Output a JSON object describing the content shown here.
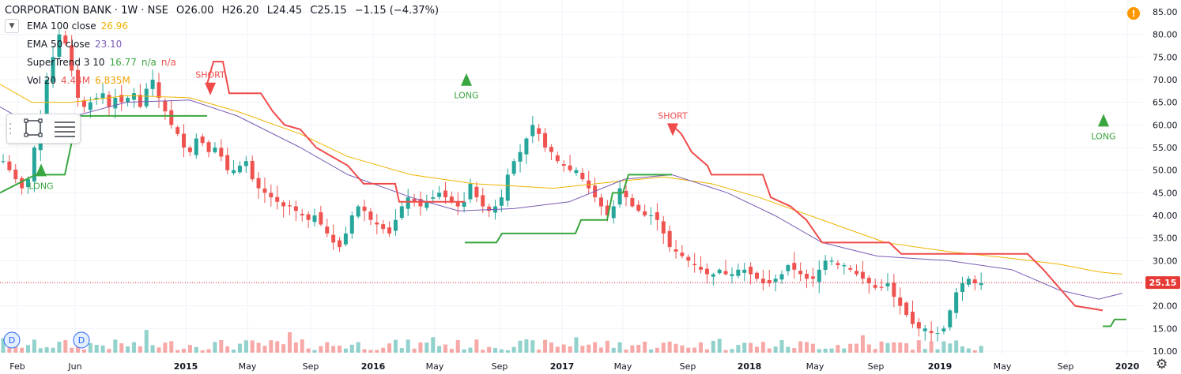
{
  "header": {
    "symbol": "CORPORATION BANK · 1W · NSE",
    "open": "O26.00",
    "high": "H26.20",
    "low": "L24.45",
    "close": "C25.15",
    "change": "−1.15 (−4.37%)"
  },
  "indicators": [
    {
      "name": "EMA 100 close",
      "value": "26.96",
      "color": "#f0b400"
    },
    {
      "name": "EMA 50 close",
      "value": "23.10",
      "color": "#7a5bb5"
    },
    {
      "name": "SuperTrend 3 10",
      "value": "16.77",
      "value2": "n/a",
      "value3": "n/a",
      "color": "#3aa63f"
    },
    {
      "name": "Vol 20",
      "value": "4.44M",
      "value2": "6.835M",
      "color": "#ef5350"
    }
  ],
  "colors": {
    "up": "#26a69a",
    "down": "#ef5350",
    "st_up": "#3aa63f",
    "st_down": "#f04b4b",
    "ema100": "#f0b400",
    "ema50": "#7a5bb5",
    "pricebadge": "#e53935"
  },
  "chart_data": {
    "type": "candlestick",
    "x_ticks": [
      "Feb",
      "Jun",
      "2015",
      "May",
      "Sep",
      "2016",
      "May",
      "Sep",
      "2017",
      "May",
      "Sep",
      "2018",
      "May",
      "Sep",
      "2019",
      "May",
      "Sep",
      "2020"
    ],
    "y_ticks": [
      "85.00",
      "80.00",
      "75.00",
      "70.00",
      "65.00",
      "60.00",
      "55.00",
      "50.00",
      "45.00",
      "40.00",
      "35.00",
      "30.00",
      "25.00",
      "20.00",
      "15.00",
      "10.00"
    ],
    "ylim": [
      10,
      86
    ],
    "last_price": "25.15",
    "close_path": [
      52,
      50,
      48,
      46,
      48,
      55,
      62,
      70,
      75,
      80,
      78,
      72,
      66,
      64,
      65,
      66,
      67,
      64,
      66,
      65,
      66,
      67,
      64,
      68,
      70,
      66,
      63,
      60,
      58,
      55,
      54,
      57,
      56,
      54,
      55,
      53,
      50,
      50,
      51,
      52,
      48,
      46,
      45,
      44,
      43,
      42,
      42,
      41,
      40,
      39,
      40,
      38,
      36,
      34,
      33,
      36,
      40,
      42,
      41,
      39,
      38,
      37,
      36,
      39,
      42,
      44,
      43,
      42,
      43,
      44,
      45,
      44,
      43,
      42,
      43,
      47,
      44,
      42,
      41,
      42,
      44,
      49,
      52,
      54,
      57,
      60,
      58,
      55,
      54,
      52,
      51,
      50,
      50,
      48,
      46,
      44,
      42,
      40,
      42,
      46,
      44,
      42,
      41,
      40,
      40,
      39,
      36,
      33,
      32,
      31,
      30,
      29,
      28,
      27,
      27,
      28,
      27,
      27,
      28,
      28,
      27,
      26,
      25,
      25,
      26,
      27,
      29,
      28,
      27,
      26,
      26,
      28,
      30,
      30,
      29,
      29,
      28,
      27,
      26,
      25,
      24,
      24,
      25,
      22,
      20,
      18,
      16,
      15,
      15,
      14,
      14,
      15,
      19,
      23,
      25,
      26,
      25,
      25
    ],
    "ema100_path": [
      [
        0,
        69
      ],
      [
        40,
        65
      ],
      [
        90,
        65
      ],
      [
        160,
        66.5
      ],
      [
        240,
        66
      ],
      [
        300,
        63
      ],
      [
        380,
        58
      ],
      [
        440,
        53
      ],
      [
        520,
        49
      ],
      [
        600,
        47
      ],
      [
        700,
        46
      ],
      [
        780,
        47.5
      ],
      [
        840,
        48.5
      ],
      [
        900,
        47
      ],
      [
        960,
        44
      ],
      [
        1040,
        39
      ],
      [
        1120,
        34
      ],
      [
        1200,
        32
      ],
      [
        1280,
        30.5
      ],
      [
        1340,
        29.2
      ],
      [
        1390,
        27.5
      ],
      [
        1420,
        27
      ]
    ],
    "ema50_path": [
      [
        0,
        64
      ],
      [
        40,
        60
      ],
      [
        95,
        62
      ],
      [
        160,
        65
      ],
      [
        240,
        65.5
      ],
      [
        300,
        62
      ],
      [
        380,
        55
      ],
      [
        440,
        49
      ],
      [
        520,
        44
      ],
      [
        580,
        41
      ],
      [
        650,
        41.5
      ],
      [
        720,
        43
      ],
      [
        790,
        48
      ],
      [
        850,
        49
      ],
      [
        920,
        45
      ],
      [
        980,
        40
      ],
      [
        1040,
        34
      ],
      [
        1110,
        31
      ],
      [
        1200,
        30
      ],
      [
        1280,
        28
      ],
      [
        1340,
        23.5
      ],
      [
        1390,
        21.5
      ],
      [
        1420,
        22.8
      ]
    ],
    "supertrend_segments": [
      {
        "trend": "up",
        "points": [
          [
            0,
            45
          ],
          [
            45,
            49
          ],
          [
            82,
            49
          ],
          [
            93,
            58
          ],
          [
            100,
            62
          ],
          [
            262,
            62
          ]
        ]
      },
      {
        "trend": "down",
        "points": [
          [
            262,
            69
          ],
          [
            270,
            74
          ],
          [
            282,
            74
          ],
          [
            290,
            67
          ],
          [
            330,
            67
          ],
          [
            345,
            63
          ],
          [
            360,
            60
          ],
          [
            380,
            59
          ],
          [
            400,
            55
          ],
          [
            420,
            53
          ],
          [
            440,
            51
          ],
          [
            460,
            47
          ],
          [
            500,
            47
          ],
          [
            505,
            43
          ],
          [
            588,
            43
          ]
        ]
      },
      {
        "trend": "up",
        "points": [
          [
            588,
            34
          ],
          [
            628,
            34
          ],
          [
            635,
            36
          ],
          [
            728,
            36
          ],
          [
            735,
            39
          ],
          [
            768,
            39
          ],
          [
            775,
            45
          ],
          [
            788,
            45
          ],
          [
            795,
            49
          ],
          [
            850,
            49
          ]
        ]
      },
      {
        "trend": "down",
        "points": [
          [
            850,
            60
          ],
          [
            862,
            58
          ],
          [
            875,
            54
          ],
          [
            895,
            51
          ],
          [
            900,
            49
          ],
          [
            965,
            49
          ],
          [
            975,
            44
          ],
          [
            1000,
            42
          ],
          [
            1020,
            39
          ],
          [
            1040,
            34
          ],
          [
            1125,
            34
          ],
          [
            1140,
            31.5
          ],
          [
            1300,
            31.5
          ],
          [
            1320,
            28
          ],
          [
            1340,
            24
          ],
          [
            1360,
            20
          ],
          [
            1395,
            19
          ]
        ]
      },
      {
        "trend": "up",
        "points": [
          [
            1395,
            15.5
          ],
          [
            1405,
            15.5
          ],
          [
            1410,
            17
          ],
          [
            1425,
            17
          ]
        ]
      }
    ],
    "signals": [
      {
        "type": "LONG",
        "label": "LONG",
        "x": 52
      },
      {
        "type": "SHORT",
        "label": "SHORT",
        "x": 266
      },
      {
        "type": "LONG",
        "label": "LONG",
        "x": 590
      },
      {
        "type": "SHORT",
        "label": "SHORT",
        "x": 851
      },
      {
        "type": "LONG",
        "label": "LONG",
        "x": 1396
      }
    ],
    "dividend_markers": [
      "D",
      "D"
    ]
  }
}
